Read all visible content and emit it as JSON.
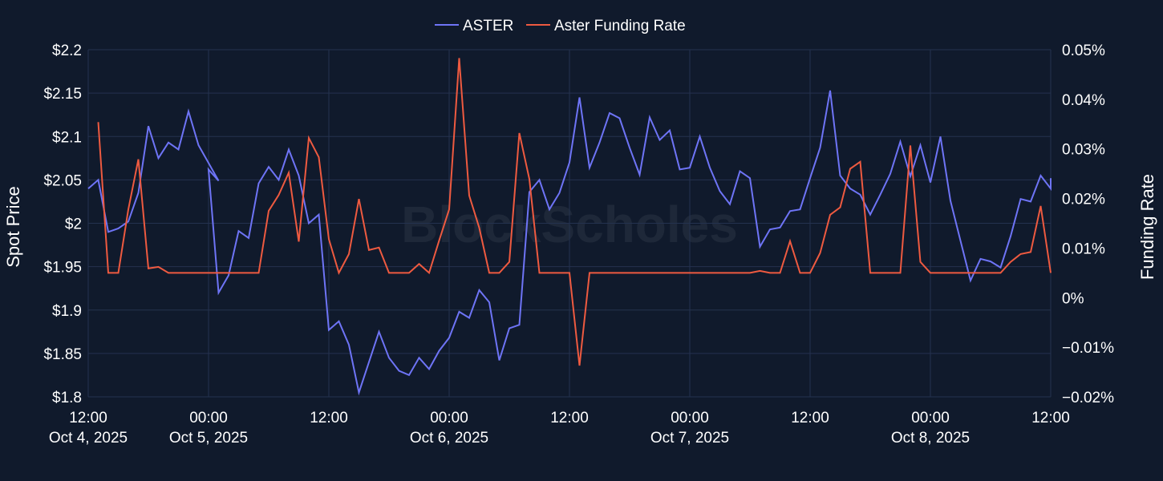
{
  "chart_data": {
    "type": "line",
    "watermark": "BlockScholes",
    "colors": {
      "background": "#101a2c",
      "grid": "#24324f",
      "aster": "#6e74f6",
      "funding": "#ee5a40"
    },
    "legend": {
      "placement": "top-center",
      "items": [
        "ASTER",
        "Aster Funding Rate"
      ]
    },
    "x_axis": {
      "range": [
        "2025-10-04 12:00",
        "2025-10-08 12:00"
      ],
      "ticks": [
        {
          "line1": "12:00",
          "line2": "Oct 4, 2025"
        },
        {
          "line1": "00:00",
          "line2": "Oct 5, 2025"
        },
        {
          "line1": "12:00",
          "line2": ""
        },
        {
          "line1": "00:00",
          "line2": "Oct 6, 2025"
        },
        {
          "line1": "12:00",
          "line2": ""
        },
        {
          "line1": "00:00",
          "line2": "Oct 7, 2025"
        },
        {
          "line1": "12:00",
          "line2": ""
        },
        {
          "line1": "00:00",
          "line2": "Oct 8, 2025"
        },
        {
          "line1": "12:00",
          "line2": ""
        }
      ]
    },
    "y_left": {
      "label": "Spot Price",
      "range": [
        1.8,
        2.2
      ],
      "ticks": [
        "$2.2",
        "$2.15",
        "$2.1",
        "$2.05",
        "$2",
        "$1.95",
        "$1.9",
        "$1.85",
        "$1.8"
      ]
    },
    "y_right": {
      "label": "Funding Rate",
      "unit": "%",
      "range": [
        -0.02,
        0.05
      ],
      "ticks": [
        "0.05%",
        "0.04%",
        "0.03%",
        "0.02%",
        "0.01%",
        "0%",
        "−0.01%",
        "−0.02%"
      ]
    },
    "series": [
      {
        "name": "ASTER",
        "axis": "left",
        "color": "#6e74f6",
        "points": [
          [
            "2025-10-04 12:00",
            2.04
          ],
          [
            "2025-10-04 13:00",
            2.05
          ],
          [
            "2025-10-04 14:00",
            1.99
          ],
          [
            "2025-10-04 15:00",
            1.994
          ],
          [
            "2025-10-04 16:00",
            2.002
          ],
          [
            "2025-10-04 17:00",
            2.035
          ],
          [
            "2025-10-04 18:00",
            2.112
          ],
          [
            "2025-10-04 19:00",
            2.075
          ],
          [
            "2025-10-04 20:00",
            2.093
          ],
          [
            "2025-10-04 21:00",
            2.085
          ],
          [
            "2025-10-04 22:00",
            2.129
          ],
          [
            "2025-10-04 23:00",
            2.09
          ],
          [
            "2025-10-05 01:00",
            2.049
          ],
          [
            "2025-10-05 00:00",
            2.062
          ],
          [
            "2025-10-05 01:00",
            1.92
          ],
          [
            "2025-10-05 02:00",
            1.94
          ],
          [
            "2025-10-05 03:00",
            1.991
          ],
          [
            "2025-10-05 04:00",
            1.983
          ],
          [
            "2025-10-05 05:00",
            2.046
          ],
          [
            "2025-10-05 06:00",
            2.065
          ],
          [
            "2025-10-05 07:00",
            2.05
          ],
          [
            "2025-10-05 08:00",
            2.085
          ],
          [
            "2025-10-05 09:00",
            2.055
          ],
          [
            "2025-10-05 10:00",
            2.0
          ],
          [
            "2025-10-05 11:00",
            2.01
          ],
          [
            "2025-10-05 12:00",
            1.877
          ],
          [
            "2025-10-05 13:00",
            1.887
          ],
          [
            "2025-10-05 14:00",
            1.86
          ],
          [
            "2025-10-05 15:00",
            1.805
          ],
          [
            "2025-10-05 16:00",
            1.84
          ],
          [
            "2025-10-05 17:00",
            1.875
          ],
          [
            "2025-10-05 18:00",
            1.845
          ],
          [
            "2025-10-05 19:00",
            1.83
          ],
          [
            "2025-10-05 20:00",
            1.825
          ],
          [
            "2025-10-05 21:00",
            1.845
          ],
          [
            "2025-10-05 22:00",
            1.832
          ],
          [
            "2025-10-05 23:00",
            1.853
          ],
          [
            "2025-10-06 00:00",
            1.868
          ],
          [
            "2025-10-06 01:00",
            1.898
          ],
          [
            "2025-10-06 02:00",
            1.891
          ],
          [
            "2025-10-06 03:00",
            1.923
          ],
          [
            "2025-10-06 04:00",
            1.909
          ],
          [
            "2025-10-06 05:00",
            1.842
          ],
          [
            "2025-10-06 06:00",
            1.879
          ],
          [
            "2025-10-06 07:00",
            1.883
          ],
          [
            "2025-10-06 08:00",
            2.036
          ],
          [
            "2025-10-06 09:00",
            2.05
          ],
          [
            "2025-10-06 10:00",
            2.016
          ],
          [
            "2025-10-06 11:00",
            2.035
          ],
          [
            "2025-10-06 12:00",
            2.07
          ],
          [
            "2025-10-06 13:00",
            2.145
          ],
          [
            "2025-10-06 14:00",
            2.064
          ],
          [
            "2025-10-06 15:00",
            2.093
          ],
          [
            "2025-10-06 16:00",
            2.127
          ],
          [
            "2025-10-06 17:00",
            2.121
          ],
          [
            "2025-10-06 18:00",
            2.087
          ],
          [
            "2025-10-06 19:00",
            2.056
          ],
          [
            "2025-10-06 20:00",
            2.122
          ],
          [
            "2025-10-06 21:00",
            2.096
          ],
          [
            "2025-10-06 22:00",
            2.107
          ],
          [
            "2025-10-06 23:00",
            2.062
          ],
          [
            "2025-10-07 00:00",
            2.064
          ],
          [
            "2025-10-07 01:00",
            2.1
          ],
          [
            "2025-10-07 02:00",
            2.064
          ],
          [
            "2025-10-07 03:00",
            2.037
          ],
          [
            "2025-10-07 04:00",
            2.022
          ],
          [
            "2025-10-07 05:00",
            2.06
          ],
          [
            "2025-10-07 06:00",
            2.052
          ],
          [
            "2025-10-07 07:00",
            1.973
          ],
          [
            "2025-10-07 08:00",
            1.993
          ],
          [
            "2025-10-07 09:00",
            1.995
          ],
          [
            "2025-10-07 10:00",
            2.014
          ],
          [
            "2025-10-07 11:00",
            2.016
          ],
          [
            "2025-10-07 12:00",
            2.052
          ],
          [
            "2025-10-07 13:00",
            2.087
          ],
          [
            "2025-10-07 14:00",
            2.153
          ],
          [
            "2025-10-07 15:00",
            2.055
          ],
          [
            "2025-10-07 16:00",
            2.04
          ],
          [
            "2025-10-07 17:00",
            2.033
          ],
          [
            "2025-10-07 18:00",
            2.01
          ],
          [
            "2025-10-07 19:00",
            2.033
          ],
          [
            "2025-10-07 20:00",
            2.057
          ],
          [
            "2025-10-07 21:00",
            2.094
          ],
          [
            "2025-10-07 22:00",
            2.054
          ],
          [
            "2025-10-07 23:00",
            2.09
          ],
          [
            "2025-10-08 00:00",
            2.047
          ],
          [
            "2025-10-08 01:00",
            2.1
          ],
          [
            "2025-10-08 02:00",
            2.026
          ],
          [
            "2025-10-08 03:00",
            1.98
          ],
          [
            "2025-10-08 04:00",
            1.934
          ],
          [
            "2025-10-08 05:00",
            1.959
          ],
          [
            "2025-10-08 06:00",
            1.956
          ],
          [
            "2025-10-08 07:00",
            1.949
          ],
          [
            "2025-10-08 08:00",
            1.985
          ],
          [
            "2025-10-08 09:00",
            2.028
          ],
          [
            "2025-10-08 10:00",
            2.025
          ],
          [
            "2025-10-08 11:00",
            2.055
          ],
          [
            "2025-10-08 12:00",
            2.04
          ],
          [
            "2025-10-08 12:00",
            2.052
          ]
        ]
      },
      {
        "name": "Aster Funding Rate",
        "axis": "right",
        "color": "#ee5a40",
        "points": [
          [
            "2025-10-04 13:00",
            0.0354
          ],
          [
            "2025-10-04 14:00",
            0.005
          ],
          [
            "2025-10-04 15:00",
            0.005
          ],
          [
            "2025-10-04 16:00",
            0.0178
          ],
          [
            "2025-10-04 17:00",
            0.0279
          ],
          [
            "2025-10-04 18:00",
            0.0059
          ],
          [
            "2025-10-04 19:00",
            0.0062
          ],
          [
            "2025-10-04 20:00",
            0.005
          ],
          [
            "2025-10-04 22:00",
            0.005
          ],
          [
            "2025-10-05 05:00",
            0.005
          ],
          [
            "2025-10-05 06:00",
            0.0175
          ],
          [
            "2025-10-05 07:00",
            0.0207
          ],
          [
            "2025-10-05 08:00",
            0.0252
          ],
          [
            "2025-10-05 09:00",
            0.0113
          ],
          [
            "2025-10-05 10:00",
            0.0322
          ],
          [
            "2025-10-05 11:00",
            0.0283
          ],
          [
            "2025-10-05 12:00",
            0.0118
          ],
          [
            "2025-10-05 13:00",
            0.005
          ],
          [
            "2025-10-05 14:00",
            0.0088
          ],
          [
            "2025-10-05 15:00",
            0.0199
          ],
          [
            "2025-10-05 16:00",
            0.0096
          ],
          [
            "2025-10-05 17:00",
            0.0101
          ],
          [
            "2025-10-05 18:00",
            0.005
          ],
          [
            "2025-10-05 20:00",
            0.005
          ],
          [
            "2025-10-05 21:00",
            0.0068
          ],
          [
            "2025-10-05 22:00",
            0.005
          ],
          [
            "2025-10-05 23:00",
            0.0115
          ],
          [
            "2025-10-06 00:00",
            0.0178
          ],
          [
            "2025-10-06 01:00",
            0.0483
          ],
          [
            "2025-10-06 02:00",
            0.0206
          ],
          [
            "2025-10-06 03:00",
            0.0141
          ],
          [
            "2025-10-06 04:00",
            0.005
          ],
          [
            "2025-10-06 05:00",
            0.005
          ],
          [
            "2025-10-06 06:00",
            0.0072
          ],
          [
            "2025-10-06 07:00",
            0.0332
          ],
          [
            "2025-10-06 08:00",
            0.0239
          ],
          [
            "2025-10-06 09:00",
            0.005
          ],
          [
            "2025-10-06 12:00",
            0.005
          ],
          [
            "2025-10-06 13:00",
            -0.0137
          ],
          [
            "2025-10-06 14:00",
            0.005
          ],
          [
            "2025-10-07 06:00",
            0.005
          ],
          [
            "2025-10-07 07:00",
            0.0054
          ],
          [
            "2025-10-07 08:00",
            0.005
          ],
          [
            "2025-10-07 09:00",
            0.005
          ],
          [
            "2025-10-07 10:00",
            0.0114
          ],
          [
            "2025-10-07 11:00",
            0.005
          ],
          [
            "2025-10-07 12:00",
            0.005
          ],
          [
            "2025-10-07 13:00",
            0.009
          ],
          [
            "2025-10-07 14:00",
            0.0167
          ],
          [
            "2025-10-07 15:00",
            0.0182
          ],
          [
            "2025-10-07 16:00",
            0.026
          ],
          [
            "2025-10-07 17:00",
            0.0274
          ],
          [
            "2025-10-07 18:00",
            0.005
          ],
          [
            "2025-10-07 21:00",
            0.005
          ],
          [
            "2025-10-07 22:00",
            0.0307
          ],
          [
            "2025-10-07 23:00",
            0.0072
          ],
          [
            "2025-10-08 00:00",
            0.005
          ],
          [
            "2025-10-08 07:00",
            0.005
          ],
          [
            "2025-10-08 08:00",
            0.0072
          ],
          [
            "2025-10-08 09:00",
            0.0088
          ],
          [
            "2025-10-08 10:00",
            0.0092
          ],
          [
            "2025-10-08 11:00",
            0.0185
          ],
          [
            "2025-10-08 12:00",
            0.005
          ]
        ]
      }
    ]
  }
}
